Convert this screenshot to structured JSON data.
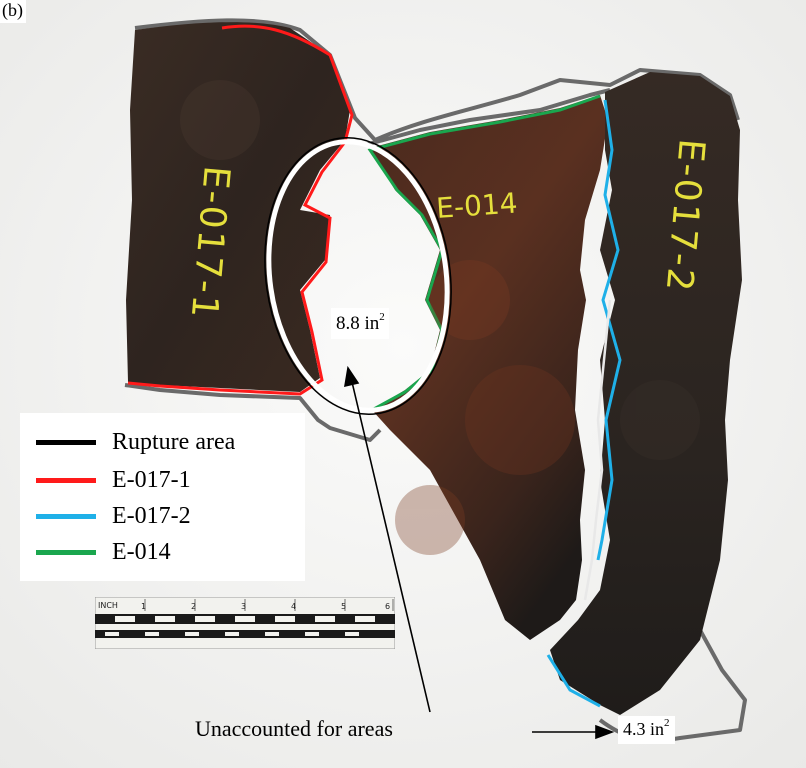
{
  "figure_label": "(b)",
  "colors": {
    "rupture": "#000000",
    "e017_1": "#ff1a1a",
    "e017_2": "#1fb0e8",
    "e014": "#1aa64e",
    "background": "#f4f4f2",
    "metal_dark": "#2e2420",
    "rust": "#5a2f1e"
  },
  "legend": [
    {
      "label": "Rupture area",
      "color": "#000000"
    },
    {
      "label": "E-017-1",
      "color": "#ff1a1a"
    },
    {
      "label": "E-017-2",
      "color": "#1fb0e8"
    },
    {
      "label": "E-014",
      "color": "#1aa64e"
    }
  ],
  "area_labels": {
    "area1_value": "8.8 in",
    "area1_exp": "2",
    "area2_value": "4.3 in",
    "area2_exp": "2"
  },
  "annotation": "Unaccounted for areas",
  "fragment_markings": [
    "E-017-1",
    "E-014",
    "E-017-2"
  ],
  "ruler": {
    "unit_label": "INCH",
    "numbers": [
      "1",
      "2",
      "3",
      "4",
      "5",
      "6"
    ]
  }
}
